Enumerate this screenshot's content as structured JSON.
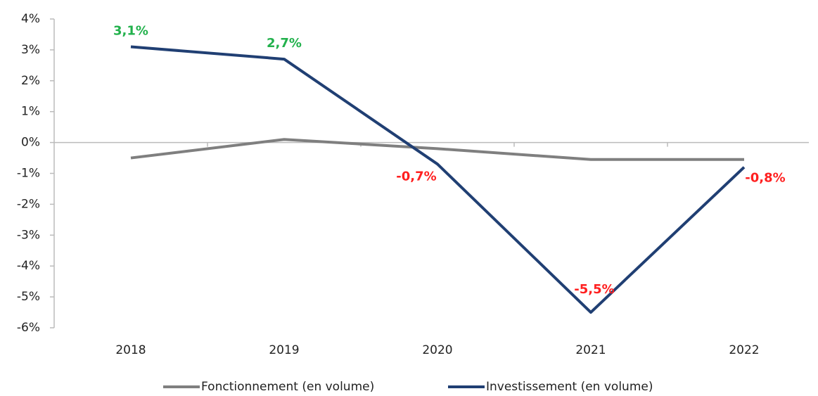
{
  "chart_data": {
    "type": "line",
    "categories": [
      "2018",
      "2019",
      "2020",
      "2021",
      "2022"
    ],
    "series": [
      {
        "name": "Fonctionnement (en volume)",
        "color": "#7f7f7f",
        "values": [
          -0.5,
          0.1,
          -0.2,
          -0.55,
          -0.55
        ]
      },
      {
        "name": "Investissement (en volume)",
        "color": "#203f73",
        "values": [
          3.1,
          2.7,
          -0.7,
          -5.5,
          -0.8
        ],
        "value_labels": [
          "3,1%",
          "2,7%",
          "-0,7%",
          "-5,5%",
          "-0,8%"
        ],
        "value_label_colors": [
          "#22b14c",
          "#22b14c",
          "#ff2020",
          "#ff2020",
          "#ff2020"
        ]
      }
    ],
    "ylim": [
      -6,
      4
    ],
    "yticks": [
      {
        "value": 4,
        "label": "4%"
      },
      {
        "value": 3,
        "label": "3%"
      },
      {
        "value": 2,
        "label": "2%"
      },
      {
        "value": 1,
        "label": "1%"
      },
      {
        "value": 0,
        "label": "0%"
      },
      {
        "value": -1,
        "label": "-1%"
      },
      {
        "value": -2,
        "label": "-2%"
      },
      {
        "value": -3,
        "label": "-3%"
      },
      {
        "value": -4,
        "label": "-4%"
      },
      {
        "value": -5,
        "label": "-5%"
      },
      {
        "value": -6,
        "label": "-6%"
      }
    ],
    "grid": false,
    "legend": "bottom"
  }
}
